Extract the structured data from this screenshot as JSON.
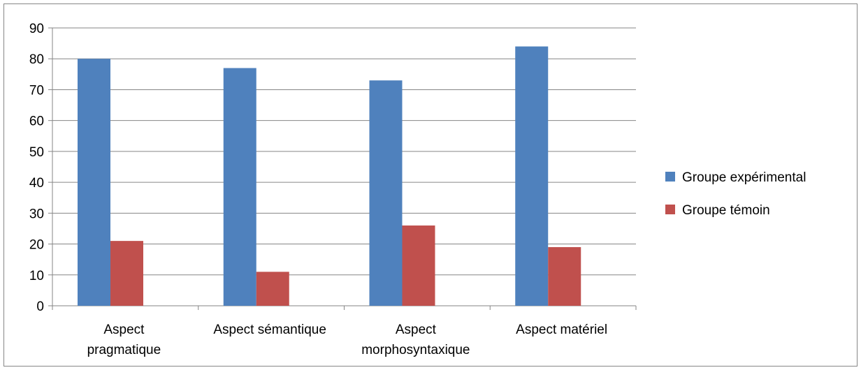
{
  "chart_data": {
    "type": "bar",
    "categories": [
      [
        "Aspect",
        "pragmatique"
      ],
      [
        "Aspect sémantique"
      ],
      [
        "Aspect",
        "morphosyntaxique"
      ],
      [
        "Aspect matériel"
      ]
    ],
    "series": [
      {
        "name": "Groupe expérimental",
        "color": "#4F81BD",
        "values": [
          80,
          77,
          73,
          84
        ]
      },
      {
        "name": "Groupe témoin",
        "color": "#C0504D",
        "values": [
          21,
          11,
          26,
          19
        ]
      }
    ],
    "ylim": [
      0,
      90
    ],
    "yticks": [
      "0",
      "10",
      "20",
      "30",
      "40",
      "50",
      "60",
      "70",
      "80",
      "90"
    ],
    "grid": true,
    "legend": "right",
    "title": "",
    "xlabel": "",
    "ylabel": ""
  }
}
